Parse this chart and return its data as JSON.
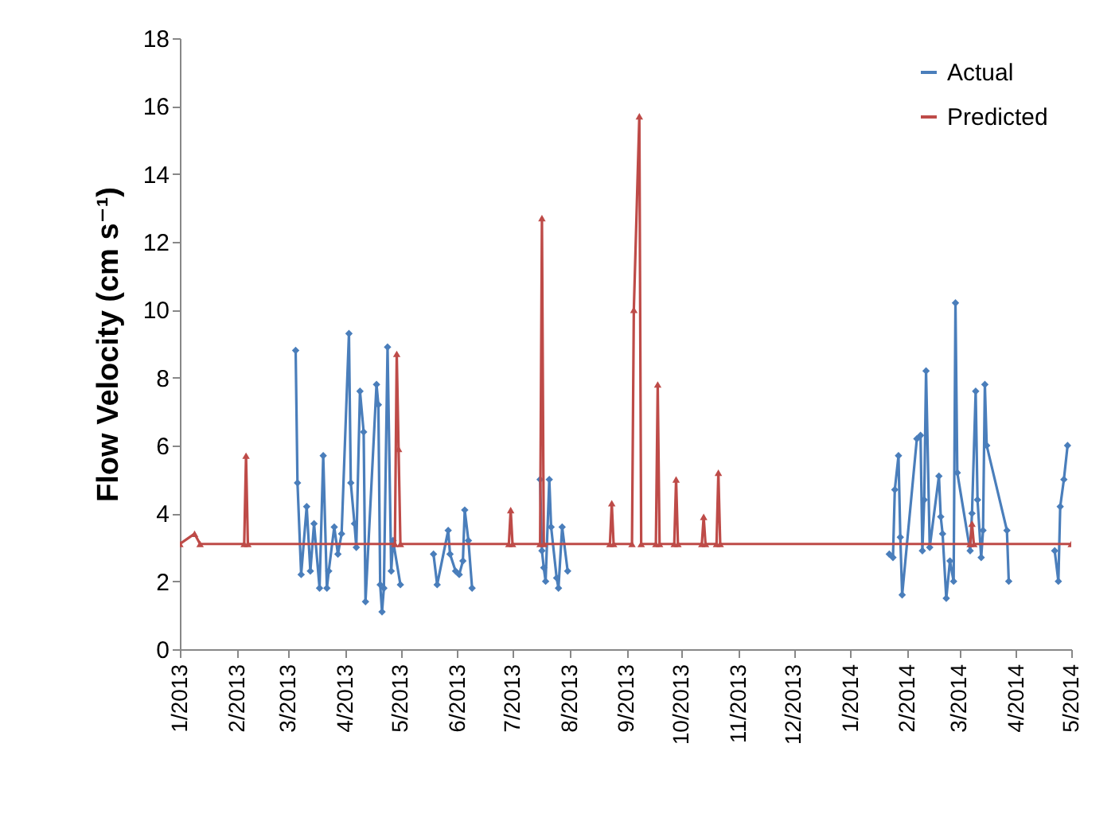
{
  "chart_data": {
    "type": "line",
    "ylabel": "Flow Velocity (cm s⁻¹)",
    "xlim": [
      "2013-01-01",
      "2014-05-01"
    ],
    "xticks": [
      {
        "value": "2013-01-01",
        "label": "1/2013"
      },
      {
        "value": "2013-02-01",
        "label": "2/2013"
      },
      {
        "value": "2013-03-01",
        "label": "3/2013"
      },
      {
        "value": "2013-04-01",
        "label": "4/2013"
      },
      {
        "value": "2013-05-01",
        "label": "5/2013"
      },
      {
        "value": "2013-06-01",
        "label": "6/2013"
      },
      {
        "value": "2013-07-01",
        "label": "7/2013"
      },
      {
        "value": "2013-08-01",
        "label": "8/2013"
      },
      {
        "value": "2013-09-01",
        "label": "9/2013"
      },
      {
        "value": "2013-10-01",
        "label": "10/2013"
      },
      {
        "value": "2013-11-01",
        "label": "11/2013"
      },
      {
        "value": "2013-12-01",
        "label": "12/2013"
      },
      {
        "value": "2014-01-01",
        "label": "1/2014"
      },
      {
        "value": "2014-02-01",
        "label": "2/2014"
      },
      {
        "value": "2014-03-01",
        "label": "3/2014"
      },
      {
        "value": "2014-04-01",
        "label": "4/2014"
      },
      {
        "value": "2014-05-01",
        "label": "5/2014"
      }
    ],
    "ylim": [
      0,
      18
    ],
    "yticks": [
      0,
      2,
      4,
      6,
      8,
      10,
      12,
      14,
      16,
      18
    ],
    "grid": false,
    "legend": "top right",
    "line_style": "solid",
    "series": [
      {
        "name": "Actual",
        "color": "#4a7ebb",
        "marker": "diamond",
        "x": [
          "2013-03-05",
          "2013-03-06",
          "2013-03-08",
          "2013-03-11",
          "2013-03-13",
          "2013-03-15",
          "2013-03-18",
          "2013-03-20",
          "2013-03-22",
          "2013-03-23",
          "2013-03-26",
          "2013-03-28",
          "2013-03-30",
          "2013-04-03",
          "2013-04-04",
          "2013-04-06",
          "2013-04-07",
          "2013-04-09",
          "2013-04-11",
          "2013-04-12",
          "2013-04-18",
          "2013-04-19",
          "2013-04-20",
          "2013-04-21",
          "2013-04-22",
          "2013-04-24",
          "2013-04-26",
          "2013-04-27",
          "2013-05-01",
          "2013-05-10",
          "2013-05-19",
          "2013-05-21",
          "2013-05-27",
          "2013-05-28",
          "2013-05-31",
          "2013-06-02",
          "2013-06-04",
          "2013-06-05",
          "2013-06-07",
          "2013-06-09",
          "2013-07-01",
          "2013-07-16",
          "2013-07-17",
          "2013-07-18",
          "2013-07-19",
          "2013-07-21",
          "2013-07-22",
          "2013-07-25",
          "2013-07-26",
          "2013-07-28",
          "2013-07-31",
          "2013-11-01",
          "2014-01-22",
          "2014-01-24",
          "2014-01-25",
          "2014-01-27",
          "2014-01-28",
          "2014-01-29",
          "2014-02-06",
          "2014-02-08",
          "2014-02-09",
          "2014-02-10",
          "2014-02-11",
          "2014-02-13",
          "2014-02-18",
          "2014-02-19",
          "2014-02-20",
          "2014-02-22",
          "2014-02-24",
          "2014-02-26",
          "2014-02-27",
          "2014-02-28",
          "2014-03-07",
          "2014-03-08",
          "2014-03-10",
          "2014-03-11",
          "2014-03-13",
          "2014-03-14",
          "2014-03-15",
          "2014-03-16",
          "2014-03-27",
          "2014-03-28",
          "2014-04-10",
          "2014-04-22",
          "2014-04-24",
          "2014-04-25",
          "2014-04-27",
          "2014-04-29"
        ],
        "values": [
          8.8,
          4.9,
          2.2,
          4.2,
          2.3,
          3.7,
          1.8,
          5.7,
          1.8,
          2.3,
          3.6,
          2.8,
          3.4,
          9.3,
          4.9,
          3.7,
          3.0,
          7.6,
          6.4,
          1.4,
          7.8,
          7.2,
          1.9,
          1.1,
          1.8,
          8.9,
          2.3,
          3.2,
          1.9,
          null,
          2.8,
          1.9,
          3.5,
          2.8,
          2.3,
          2.2,
          2.6,
          4.1,
          3.2,
          1.8,
          null,
          5.0,
          2.9,
          2.4,
          2.0,
          5.0,
          3.6,
          2.1,
          1.8,
          3.6,
          2.3,
          null,
          2.8,
          2.7,
          4.7,
          5.7,
          3.3,
          1.6,
          6.2,
          6.3,
          2.9,
          4.4,
          8.2,
          3.0,
          5.1,
          3.9,
          3.4,
          1.5,
          2.6,
          2.0,
          10.2,
          5.2,
          2.9,
          4.0,
          7.6,
          4.4,
          2.7,
          3.5,
          7.8,
          6.0,
          3.5,
          2.0,
          null,
          2.9,
          2.0,
          4.2,
          5.0,
          6.0
        ]
      },
      {
        "name": "Predicted",
        "color": "#be4b48",
        "marker": "triangle",
        "x": [
          "2013-01-01",
          "2013-01-09",
          "2013-01-12",
          "2013-02-05",
          "2013-02-06",
          "2013-02-07",
          "2013-04-28",
          "2013-04-29",
          "2013-04-30",
          "2013-05-01",
          "2013-06-29",
          "2013-06-30",
          "2013-07-01",
          "2013-07-16",
          "2013-07-17",
          "2013-07-18",
          "2013-08-23",
          "2013-08-24",
          "2013-08-25",
          "2013-09-04",
          "2013-09-05",
          "2013-09-08",
          "2013-09-09",
          "2013-09-17",
          "2013-09-18",
          "2013-09-19",
          "2013-09-27",
          "2013-09-28",
          "2013-09-29",
          "2013-10-12",
          "2013-10-13",
          "2013-10-14",
          "2013-10-20",
          "2013-10-21",
          "2013-10-22",
          "2014-03-07",
          "2014-03-08",
          "2014-03-09",
          "2014-05-01"
        ],
        "values": [
          3.1,
          3.4,
          3.1,
          3.1,
          5.7,
          3.1,
          3.1,
          8.7,
          5.9,
          3.1,
          3.1,
          4.1,
          3.1,
          3.1,
          12.7,
          3.1,
          3.1,
          4.3,
          3.1,
          3.1,
          10.0,
          15.7,
          3.1,
          3.1,
          7.8,
          3.1,
          3.1,
          5.0,
          3.1,
          3.1,
          3.9,
          3.1,
          3.1,
          5.2,
          3.1,
          3.1,
          3.7,
          3.1,
          3.1
        ]
      }
    ]
  }
}
